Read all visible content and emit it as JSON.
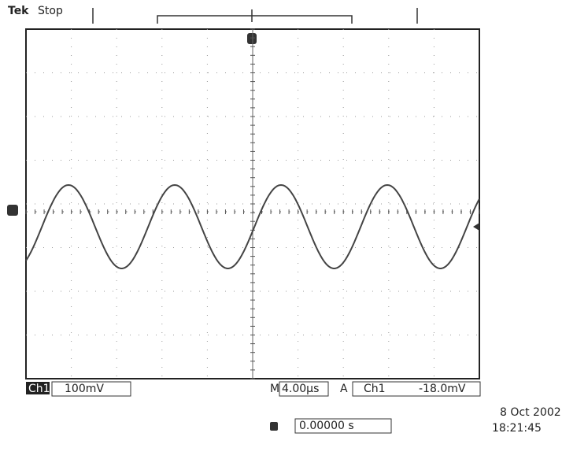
{
  "header": {
    "brand": "Tek",
    "status": "Stop"
  },
  "footer": {
    "channel": "Ch1",
    "scale": "100mV",
    "timebase_prefix": "M",
    "timebase": "4.00µs",
    "trigger_prefix": "A",
    "trigger_source": "Ch1",
    "trigger_level": "-18.0mV",
    "position": "0.00000 s",
    "date": "8 Oct  2002",
    "time": "18:21:45"
  }
}
